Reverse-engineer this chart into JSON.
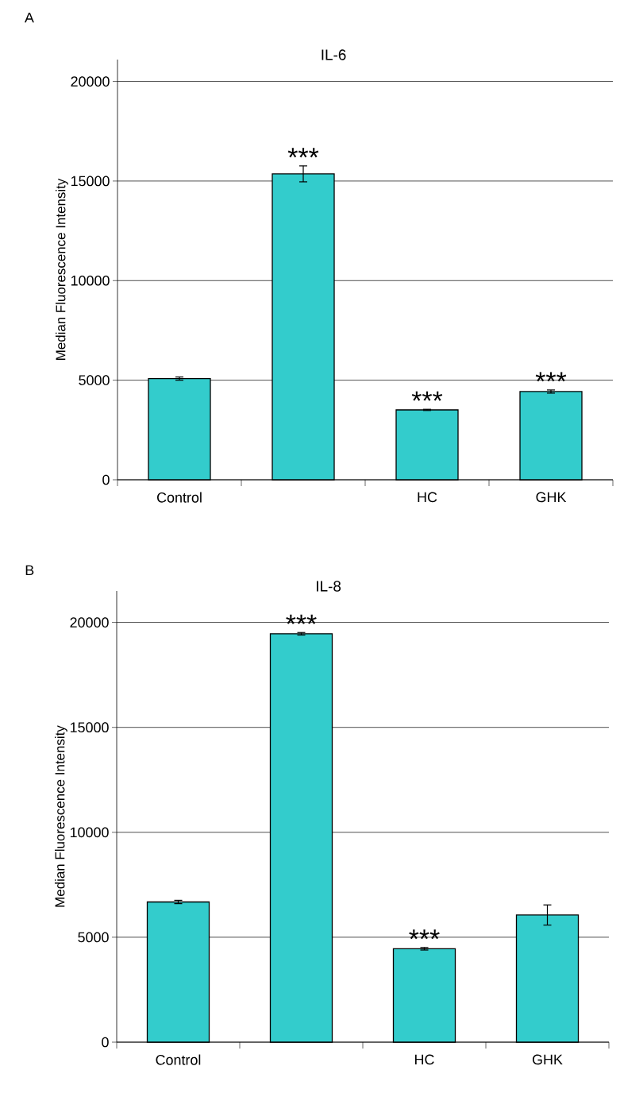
{
  "chart_data": [
    {
      "type": "bar",
      "title": "IL-6",
      "ylabel": "Median Fluorescence Intensity",
      "categories": [
        "Control",
        null,
        "HC",
        "GHK"
      ],
      "values": [
        5080,
        15360,
        3510,
        4430
      ],
      "errors": [
        80,
        400,
        30,
        80
      ],
      "value_labels": [
        null,
        "***",
        "***",
        "***"
      ],
      "color": "#33cccc",
      "ylim": [
        0,
        21100
      ],
      "yticks": [
        0,
        5000,
        10000,
        15000,
        20000
      ],
      "grid": "y",
      "annotations": [
        "A"
      ]
    },
    {
      "type": "bar",
      "title": "IL-8",
      "ylabel": "Median Fluorescence Intensity",
      "categories": [
        "Control",
        null,
        "HC",
        "GHK"
      ],
      "values": [
        6680,
        19460,
        4450,
        6060
      ],
      "errors": [
        80,
        60,
        60,
        480
      ],
      "value_labels": [
        null,
        "***",
        "***",
        null
      ],
      "color": "#33cccc",
      "ylim": [
        0,
        21500
      ],
      "yticks": [
        0,
        5000,
        10000,
        15000,
        20000
      ],
      "grid": "y",
      "annotations": [
        "B"
      ]
    }
  ]
}
